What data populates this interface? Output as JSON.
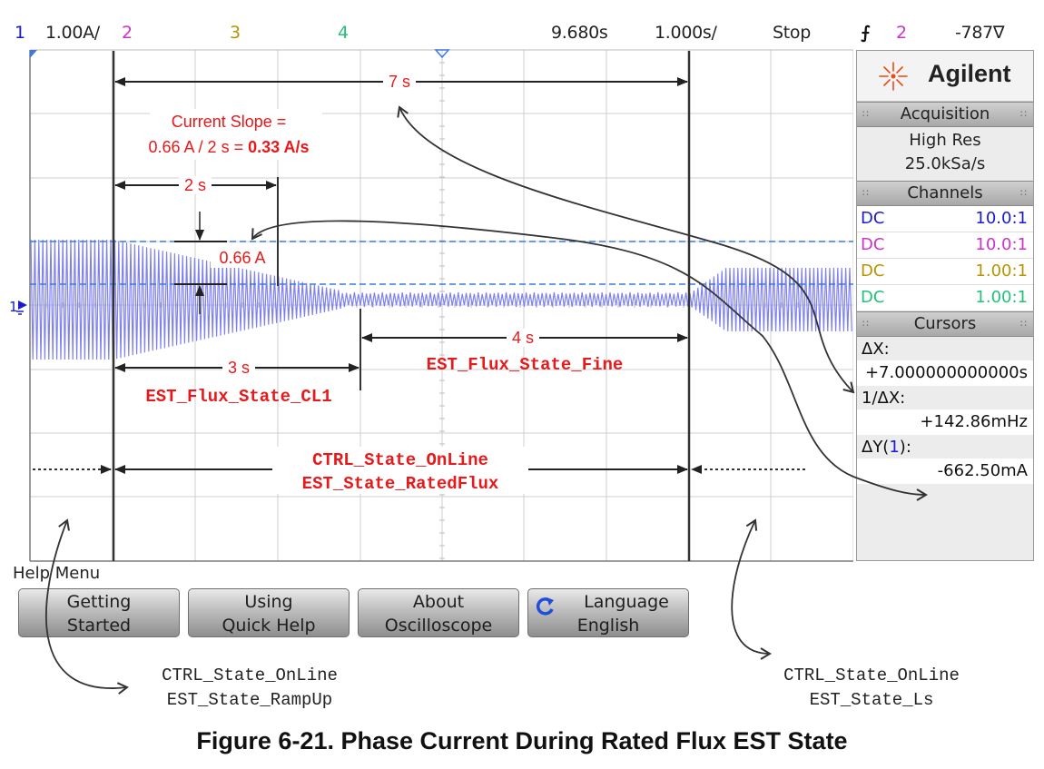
{
  "statusbar": {
    "ch1_num": "1",
    "ch1_scale": "1.00A/",
    "ch2_num": "2",
    "ch3_num": "3",
    "ch4_num": "4",
    "delay": "9.680s",
    "timebase": "1.000s/",
    "run_state": "Stop",
    "trigger_symbol": "ʃ",
    "trigger_channel": "2",
    "trigger_level": "-787∇"
  },
  "colors": {
    "ch1": "#1a1ad0",
    "ch2": "#cc33cc",
    "ch3": "#b89500",
    "ch4": "#22c27a",
    "waveform": "#7f82ee",
    "annotation_red": "#e8191a",
    "cursor_dash": "#3c78e0"
  },
  "annotations": {
    "span_7s": "7 s",
    "current_slope_line1": "Current Slope =",
    "current_slope_line2": "0.66 A / 2 s = ",
    "current_slope_value": "0.33 A/s",
    "span_2s": "2 s",
    "delta_current": "0.66 A",
    "span_3s": "3 s",
    "span_4s": "4 s",
    "flux_cl1": "EST_Flux_State_CL1",
    "flux_fine": "EST_Flux_State_Fine",
    "ctrl_online": "CTRL_State_OnLine",
    "est_ratedflux": "EST_State_RatedFlux",
    "ch1_ground_marker": "1"
  },
  "panel": {
    "brand_name": "Agilent",
    "acquisition": {
      "title": "Acquisition",
      "mode": "High Res",
      "rate": "25.0kSa/s"
    },
    "channels": {
      "title": "Channels",
      "rows": [
        {
          "coupling": "DC",
          "probe": "10.0:1"
        },
        {
          "coupling": "DC",
          "probe": "10.0:1"
        },
        {
          "coupling": "DC",
          "probe": "1.00:1"
        },
        {
          "coupling": "DC",
          "probe": "1.00:1"
        }
      ]
    },
    "cursors": {
      "title": "Cursors",
      "dx_label": "ΔX:",
      "dx_value": "+7.000000000000s",
      "inv_dx_label": "1/ΔX:",
      "inv_dx_value": "+142.86mHz",
      "dy_label_prefix": "ΔY(",
      "dy_label_ch": "1",
      "dy_label_suffix": "):",
      "dy_value": "-662.50mA"
    }
  },
  "menu": {
    "title": "Help Menu",
    "softkeys": [
      {
        "line1": "Getting",
        "line2": "Started"
      },
      {
        "line1": "Using",
        "line2": "Quick Help"
      },
      {
        "line1": "About",
        "line2": "Oscilloscope"
      },
      {
        "line1": "Language",
        "line2": "English"
      }
    ]
  },
  "callouts": {
    "left_line1": "CTRL_State_OnLine",
    "left_line2": "EST_State_RampUp",
    "right_line1": "CTRL_State_OnLine",
    "right_line2": "EST_State_Ls"
  },
  "caption": "Figure 6-21. Phase Current During Rated Flux EST State"
}
